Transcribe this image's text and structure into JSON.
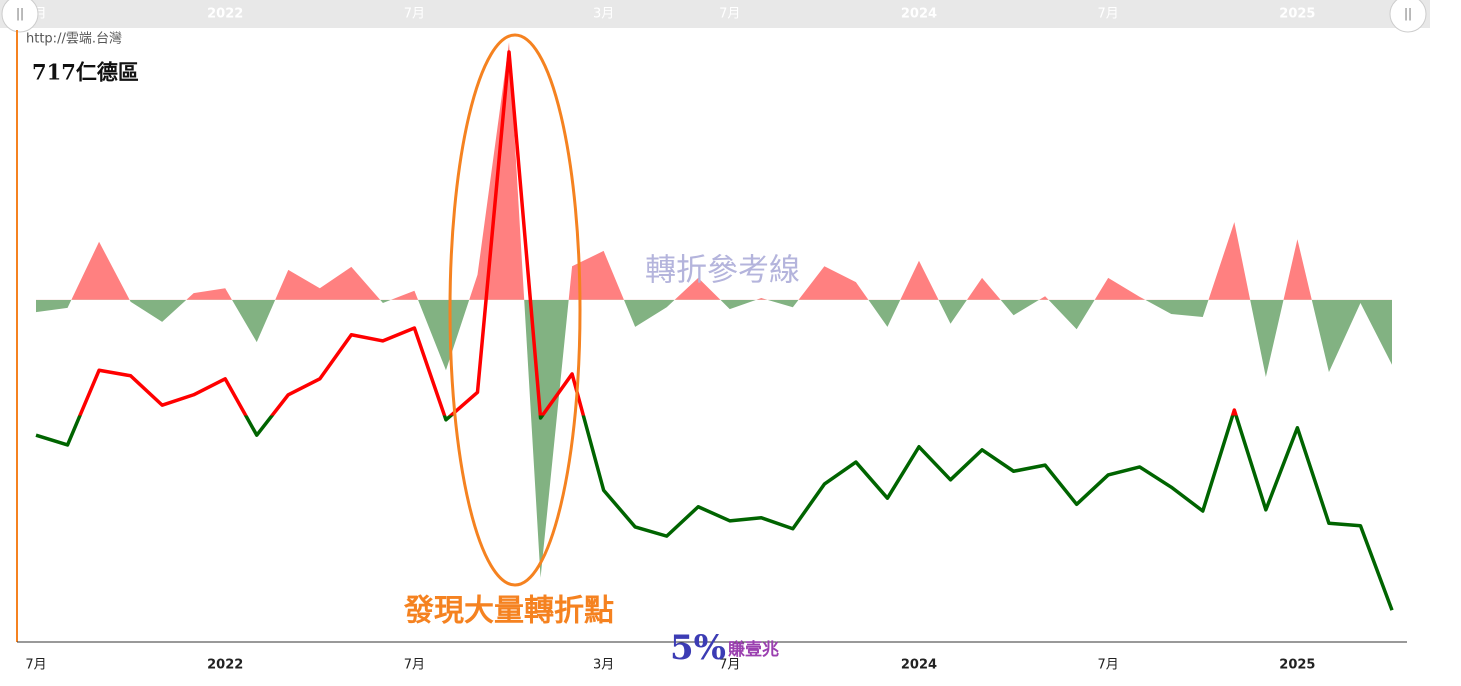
{
  "chart_data": {
    "type": "line",
    "source": "http://雲端.台灣",
    "title": "717仁德區",
    "reference_label": "轉折參考線",
    "callout": "發現大量轉折點",
    "watermark": {
      "main": "5%",
      "sub": "賺壹兆"
    },
    "categories": [
      "7月",
      null,
      null,
      null,
      null,
      null,
      "2022",
      null,
      null,
      null,
      null,
      null,
      "7月",
      null,
      null,
      null,
      null,
      null,
      "3月",
      null,
      null,
      null,
      "7月",
      null,
      null,
      null,
      null,
      null,
      "2024",
      null,
      null,
      null,
      null,
      null,
      "7月",
      null,
      null,
      null,
      null,
      null,
      "2025",
      null,
      null,
      null
    ],
    "ylim": [
      0,
      100
    ],
    "reference": 55.9,
    "threshold": 37,
    "line": {
      "color_above": "#ff0000",
      "color_below": "#006400",
      "values": [
        33.8,
        32.2,
        44.4,
        43.5,
        38.7,
        40.4,
        43.0,
        33.8,
        40.4,
        43.0,
        50.2,
        49.2,
        51.3,
        36.3,
        40.8,
        96.4,
        36.6,
        43.8,
        24.8,
        18.8,
        17.3,
        22.1,
        19.8,
        20.3,
        18.5,
        25.8,
        29.4,
        23.5,
        31.9,
        26.5,
        31.4,
        27.9,
        28.9,
        22.5,
        27.3,
        28.6,
        25.3,
        21.4,
        37.9,
        21.6,
        35.0,
        19.4,
        19.0,
        5.2
      ]
    },
    "area": {
      "color_above": "#ff8080",
      "color_below": "#82b282",
      "values": [
        53.9,
        54.6,
        65.4,
        55.6,
        52.3,
        57.0,
        57.8,
        49.0,
        60.8,
        57.8,
        61.3,
        55.4,
        57.4,
        44.4,
        60.0,
        98.0,
        10.5,
        61.4,
        63.9,
        51.5,
        54.7,
        59.5,
        54.4,
        56.2,
        54.7,
        61.4,
        58.8,
        51.5,
        62.3,
        52.0,
        59.5,
        53.4,
        56.5,
        51.1,
        59.5,
        56.4,
        53.6,
        53.1,
        68.6,
        43.3,
        65.8,
        44.1,
        55.4,
        45.3
      ]
    }
  }
}
